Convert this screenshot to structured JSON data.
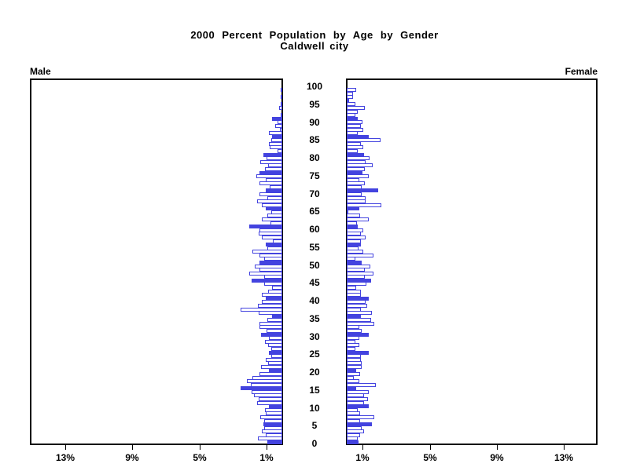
{
  "title": {
    "line1": "2000 Percent Population by Age by Gender",
    "line2": "Caldwell city"
  },
  "panel_labels": {
    "male": "Male",
    "female": "Female"
  },
  "axis": {
    "age_tick_labels": [
      "0",
      "5",
      "10",
      "15",
      "20",
      "25",
      "30",
      "35",
      "40",
      "45",
      "50",
      "55",
      "60",
      "65",
      "70",
      "75",
      "80",
      "85",
      "90",
      "95",
      "100"
    ],
    "pct_tick_values": [
      1,
      5,
      9,
      13
    ],
    "pct_tick_labels_male": [
      "13%",
      "9%",
      "5%",
      "1%"
    ],
    "pct_tick_labels_female": [
      "1%",
      "5%",
      "9%",
      "13%"
    ]
  },
  "colors": {
    "bar_blue": "#4343DF",
    "hollow_bar_fill": "#FFFFFF",
    "axis_black": "#000000",
    "background": "#FFFFFF"
  },
  "chart_data": {
    "type": "bar",
    "subtype": "population-pyramid",
    "title": "2000 Percent Population by Age by Gender",
    "subtitle": "Caldwell city",
    "orientation": "horizontal back-to-back",
    "x_unit": "percent of population",
    "age_min": 0,
    "age_max": 100,
    "solid_bar_rule": "ages divisible by 5 are solid blue, others hollow",
    "xlim_each_side": [
      0,
      15.1
    ],
    "grid": false,
    "series": [
      {
        "name": "Male",
        "side": "left",
        "values_by_age_0_to_100": [
          0.9,
          1.45,
          1.0,
          1.2,
          1.1,
          1.15,
          1.1,
          1.3,
          1.0,
          1.05,
          0.8,
          1.5,
          1.4,
          1.7,
          1.85,
          2.5,
          1.9,
          2.1,
          1.8,
          1.35,
          0.8,
          1.25,
          0.85,
          1.0,
          0.65,
          0.8,
          0.65,
          0.85,
          1.05,
          0.8,
          1.25,
          0.95,
          1.35,
          1.35,
          0.9,
          0.6,
          1.4,
          2.5,
          1.45,
          1.2,
          1.0,
          1.2,
          0.85,
          0.6,
          1.1,
          1.85,
          1.1,
          1.95,
          1.35,
          1.65,
          1.35,
          1.1,
          1.35,
          1.8,
          0.9,
          1.0,
          0.55,
          1.2,
          1.4,
          1.35,
          1.95,
          0.7,
          1.2,
          0.9,
          0.65,
          1.0,
          1.2,
          1.5,
          0.9,
          1.35,
          1.0,
          0.75,
          1.35,
          1.0,
          1.55,
          1.35,
          1.05,
          0.85,
          1.3,
          0.95,
          1.15,
          0.3,
          0.75,
          0.8,
          0.65,
          0.6,
          0.8,
          0.15,
          0.4,
          0.3,
          0.6,
          0.1,
          0.0,
          0.2,
          0.05,
          0.0,
          0.1,
          0.0,
          0.05,
          0.0,
          0.0
        ]
      },
      {
        "name": "Female",
        "side": "right",
        "values_by_age_0_to_100": [
          0.7,
          0.67,
          0.78,
          1.03,
          0.89,
          1.48,
          0.78,
          1.63,
          0.78,
          0.67,
          1.3,
          1.03,
          1.25,
          1.03,
          1.32,
          0.55,
          1.76,
          0.73,
          0.42,
          0.78,
          0.58,
          0.89,
          0.89,
          0.83,
          0.83,
          1.3,
          0.52,
          0.74,
          0.52,
          0.74,
          1.3,
          0.89,
          0.74,
          1.65,
          1.46,
          0.86,
          1.49,
          0.83,
          1.22,
          1.15,
          1.3,
          0.83,
          0.83,
          0.58,
          1.18,
          1.46,
          1.1,
          1.61,
          1.1,
          1.41,
          0.91,
          0.52,
          1.61,
          0.99,
          0.71,
          0.86,
          0.83,
          1.15,
          0.83,
          0.99,
          0.67,
          0.63,
          1.3,
          0.78,
          0.11,
          0.75,
          2.08,
          1.15,
          1.15,
          0.9,
          1.9,
          0.9,
          1.1,
          0.75,
          1.3,
          0.95,
          1.1,
          1.55,
          1.15,
          1.35,
          1.05,
          0.65,
          1.0,
          0.85,
          2.0,
          1.3,
          0.65,
          1.0,
          0.85,
          0.95,
          0.65,
          0.5,
          0.65,
          1.1,
          0.5,
          0.16,
          0.39,
          0.39,
          0.55,
          0.0,
          0.0
        ]
      }
    ]
  }
}
